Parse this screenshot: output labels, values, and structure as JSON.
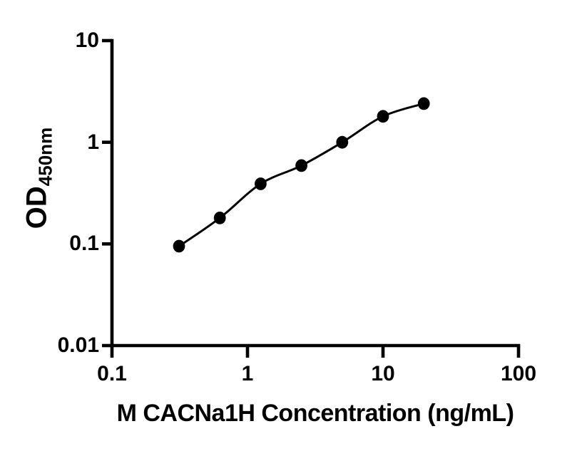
{
  "chart_data": {
    "type": "line",
    "title": "",
    "xlabel": "M CACNa1H Concentration (ng/mL)",
    "ylabel": "OD",
    "ylabel_subscript": "450nm",
    "x_scale": "log",
    "y_scale": "log",
    "xlim": [
      0.1,
      100
    ],
    "ylim": [
      0.01,
      10
    ],
    "x_ticks": [
      0.1,
      1,
      10,
      100
    ],
    "x_tick_labels": [
      "0.1",
      "1",
      "10",
      "100"
    ],
    "y_ticks": [
      10,
      1,
      0.1,
      0.01
    ],
    "y_tick_labels": [
      "10",
      "1",
      "0.1",
      "0.01"
    ],
    "x": [
      0.3125,
      0.625,
      1.25,
      2.5,
      5,
      10,
      20
    ],
    "series": [
      {
        "values": [
          0.095,
          0.18,
          0.39,
          0.59,
          1.0,
          1.8,
          2.4
        ]
      }
    ],
    "grid": false,
    "legend": false,
    "marker": "filled-circle",
    "colors": {
      "line": "#000000",
      "marker": "#000000",
      "axis": "#000000",
      "text": "#000000",
      "background": "#ffffff"
    }
  }
}
